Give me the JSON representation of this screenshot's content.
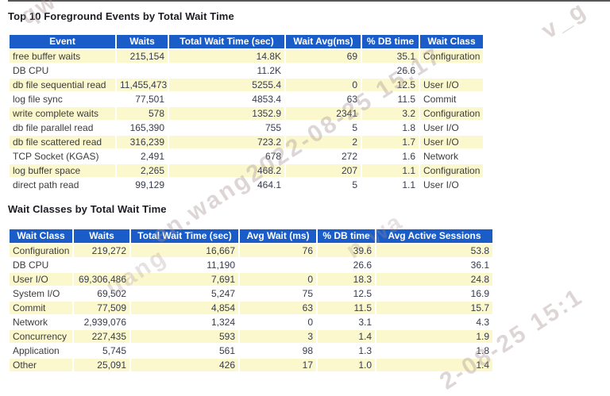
{
  "sections": [
    {
      "title": "Top 10 Foreground Events by Total Wait Time",
      "columns": [
        "Event",
        "Waits",
        "Total Wait Time (sec)",
        "Wait Avg(ms)",
        "% DB time",
        "Wait Class"
      ],
      "rows": [
        [
          "free buffer waits",
          "215,154",
          "14.8K",
          "69",
          "35.1",
          "Configuration"
        ],
        [
          "DB CPU",
          "",
          "11.2K",
          "",
          "26.6",
          ""
        ],
        [
          "db file sequential read",
          "11,455,473",
          "5255.4",
          "0",
          "12.5",
          "User I/O"
        ],
        [
          "log file sync",
          "77,501",
          "4853.4",
          "63",
          "11.5",
          "Commit"
        ],
        [
          "write complete waits",
          "578",
          "1352.9",
          "2341",
          "3.2",
          "Configuration"
        ],
        [
          "db file parallel read",
          "165,390",
          "755",
          "5",
          "1.8",
          "User I/O"
        ],
        [
          "db file scattered read",
          "316,239",
          "723.2",
          "2",
          "1.7",
          "User I/O"
        ],
        [
          "TCP Socket (KGAS)",
          "2,491",
          "678",
          "272",
          "1.6",
          "Network"
        ],
        [
          "log buffer space",
          "2,265",
          "468.2",
          "207",
          "1.1",
          "Configuration"
        ],
        [
          "direct path read",
          "99,129",
          "464.1",
          "5",
          "1.1",
          "User I/O"
        ]
      ]
    },
    {
      "title": "Wait Classes by Total Wait Time",
      "columns": [
        "Wait Class",
        "Waits",
        "Total Wait Time (sec)",
        "Avg Wait (ms)",
        "% DB time",
        "Avg Active Sessions"
      ],
      "rows": [
        [
          "Configuration",
          "219,272",
          "16,667",
          "76",
          "39.6",
          "53.8"
        ],
        [
          "DB CPU",
          "",
          "11,190",
          "",
          "26.6",
          "36.1"
        ],
        [
          "User I/O",
          "69,306,486",
          "7,691",
          "0",
          "18.3",
          "24.8"
        ],
        [
          "System I/O",
          "69,502",
          "5,247",
          "75",
          "12.5",
          "16.9"
        ],
        [
          "Commit",
          "77,509",
          "4,854",
          "63",
          "11.5",
          "15.7"
        ],
        [
          "Network",
          "2,939,076",
          "1,324",
          "0",
          "3.1",
          "4.3"
        ],
        [
          "Concurrency",
          "227,435",
          "593",
          "3",
          "1.4",
          "1.9"
        ],
        [
          "Application",
          "5,745",
          "561",
          "98",
          "1.3",
          "1.8"
        ],
        [
          "Other",
          "25,091",
          "426",
          "17",
          "1.0",
          "1.4"
        ]
      ]
    }
  ],
  "watermark": {
    "fragment_a": "en.wang2022-08-25 15:17",
    "fragment_b": "2-08-25 15:1",
    "fragment_c": "v_g",
    "fragment_d": "qw",
    "fragment_e": "uang",
    "fragment_f": "n.wa"
  },
  "colors": {
    "header_bg": "#1a5cc8",
    "header_text": "#ffffff",
    "row_alt": "#fcf8cd",
    "row_plain": "#ffffff"
  }
}
